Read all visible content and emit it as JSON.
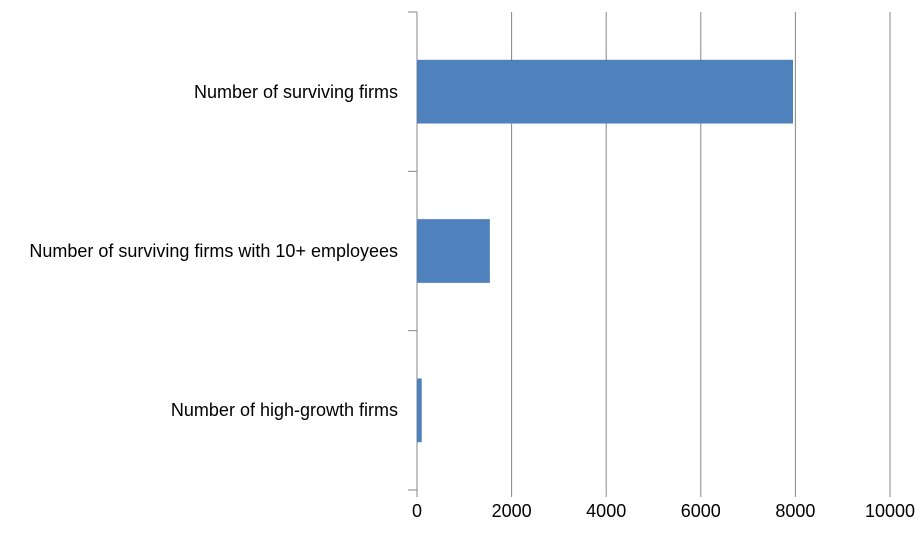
{
  "chart_data": {
    "type": "hbar",
    "categories": [
      "Number of surviving firms",
      "Number of surviving firms with 10+ employees",
      "Number of high-growth firms"
    ],
    "values": [
      7950,
      1540,
      100
    ],
    "color": "#4f81bd",
    "xlim": [
      0,
      10000
    ],
    "xticks": [
      0,
      2000,
      4000,
      6000,
      8000,
      10000
    ],
    "grid": true
  }
}
